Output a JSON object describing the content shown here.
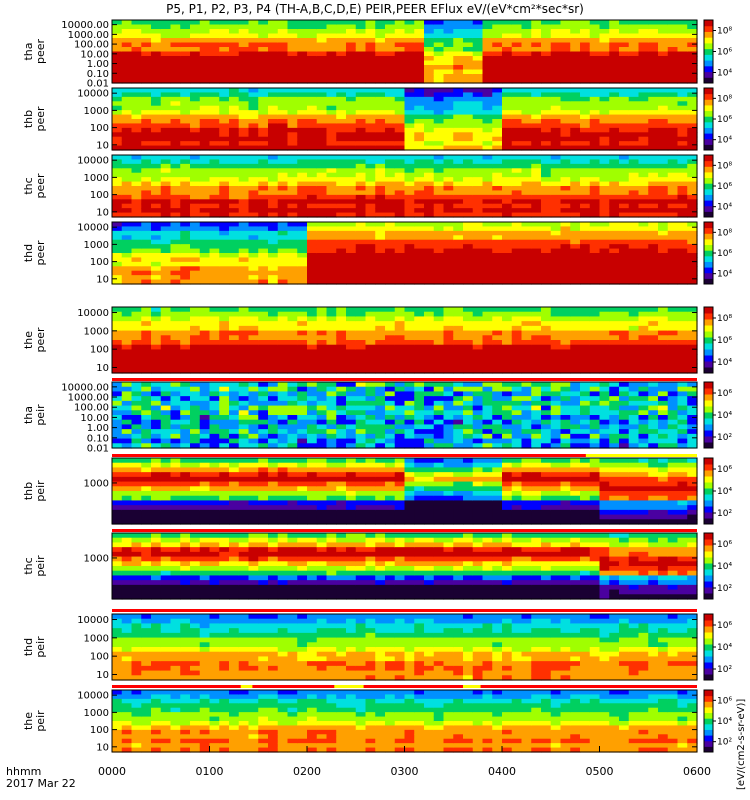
{
  "title": "P5, P1, P2, P3, P4 (TH-A,B,C,D,E) PEIR,PEER EFlux eV/(eV*cm²*sec*sr)",
  "colorbar_units": "[eV/(cm2-s-sr-eV)]",
  "colors": {
    "scale": [
      "#1a0033",
      "#4a00a0",
      "#0000ff",
      "#0090ff",
      "#00e0e0",
      "#00d060",
      "#a0ff00",
      "#ffff00",
      "#ffa000",
      "#ff3000",
      "#c80000"
    ],
    "flag_red": "#ff0000",
    "flag_yellow": "#ffff00",
    "flag_white": "#ffffff"
  },
  "chart_data": {
    "type": "heatmap",
    "x_axis": {
      "label": "hhmm",
      "date_label": "2017 Mar 22",
      "ticks": [
        "0000",
        "0100",
        "0200",
        "0300",
        "0400",
        "0500",
        "0600"
      ],
      "range": [
        0,
        360
      ],
      "unit": "minutes"
    },
    "panels": [
      {
        "id": "tha-peer",
        "label": [
          "tha",
          "peer"
        ],
        "yscale": "log",
        "ylim": [
          0.01,
          30000
        ],
        "ticks": [
          "10000.00",
          "1000.00",
          "100.00",
          "10.00",
          "1.00",
          "0.10",
          "0.01"
        ],
        "tickvals": [
          10000,
          1000,
          100,
          10,
          1,
          0.1,
          0.01
        ],
        "colorbar_ticks": [
          "10⁸",
          "10⁶",
          "10⁴"
        ],
        "colorbar_vals": [
          8,
          6,
          4
        ],
        "cbmin": 3,
        "cbmax": 9,
        "seed": 11,
        "dip": [
          190,
          230
        ],
        "level": 0.72,
        "bottom_band": true
      },
      {
        "id": "thb-peer",
        "label": [
          "thb",
          "peer"
        ],
        "yscale": "log",
        "ylim": [
          5,
          20000
        ],
        "ticks": [
          "10000",
          "1000",
          "100",
          "10"
        ],
        "tickvals": [
          10000,
          1000,
          100,
          10
        ],
        "colorbar_ticks": [
          "10⁸",
          "10⁶",
          "10⁴"
        ],
        "colorbar_vals": [
          8,
          6,
          4
        ],
        "cbmin": 3,
        "cbmax": 9,
        "seed": 22,
        "dip": [
          180,
          240
        ],
        "level": 0.62
      },
      {
        "id": "thc-peer",
        "label": [
          "thc",
          "peer"
        ],
        "yscale": "log",
        "ylim": [
          5,
          20000
        ],
        "ticks": [
          "10000",
          "1000",
          "100",
          "10"
        ],
        "tickvals": [
          10000,
          1000,
          100,
          10
        ],
        "colorbar_ticks": [
          "10⁸",
          "10⁶",
          "10⁴"
        ],
        "colorbar_vals": [
          8,
          6,
          4
        ],
        "cbmin": 3,
        "cbmax": 9,
        "seed": 33,
        "dip": null,
        "level": 0.6
      },
      {
        "id": "thd-peer",
        "label": [
          "thd",
          "peer"
        ],
        "yscale": "log",
        "ylim": [
          5,
          20000
        ],
        "ticks": [
          "10000",
          "1000",
          "100",
          "10"
        ],
        "tickvals": [
          10000,
          1000,
          100,
          10
        ],
        "colorbar_ticks": [
          "10⁸",
          "10⁶",
          "10⁴"
        ],
        "colorbar_vals": [
          8,
          6,
          4
        ],
        "cbmin": 3,
        "cbmax": 9,
        "seed": 44,
        "dip": null,
        "level": 0.7,
        "step": [
          120,
          0.45,
          0.82
        ]
      },
      {
        "id": "the-peer",
        "label": [
          "the",
          "peer"
        ],
        "yscale": "log",
        "ylim": [
          5,
          20000
        ],
        "ticks": [
          "10000",
          "1000",
          "100",
          "10"
        ],
        "tickvals": [
          10000,
          1000,
          100,
          10
        ],
        "colorbar_ticks": [
          "10⁸",
          "10⁶",
          "10⁴"
        ],
        "colorbar_vals": [
          8,
          6,
          4
        ],
        "cbmin": 3,
        "cbmax": 9,
        "seed": 55,
        "dip": null,
        "level": 0.72
      },
      {
        "id": "tha-peir",
        "label": [
          "tha",
          "peir"
        ],
        "yscale": "log",
        "ylim": [
          0.01,
          30000
        ],
        "ticks": [
          "10000.00",
          "1000.00",
          "100.00",
          "10.00",
          "1.00",
          "0.10",
          "0.01"
        ],
        "tickvals": [
          10000,
          1000,
          100,
          10,
          1,
          0.1,
          0.01
        ],
        "colorbar_ticks": [
          "10⁶",
          "10⁴",
          "10²"
        ],
        "colorbar_vals": [
          6,
          4,
          2
        ],
        "cbmin": 1,
        "cbmax": 7,
        "seed": 66,
        "dip": null,
        "level": 0.42,
        "speckle": true
      },
      {
        "id": "thb-peir",
        "label": [
          "thb",
          "peir"
        ],
        "yscale": "log",
        "ylim": [
          5,
          25000
        ],
        "ticks": [
          "1000"
        ],
        "tickvals": [
          1000
        ],
        "colorbar_ticks": [
          "10⁶",
          "10⁴",
          "10²"
        ],
        "colorbar_vals": [
          6,
          4,
          2
        ],
        "cbmin": 1,
        "cbmax": 7,
        "seed": 77,
        "dip": [
          180,
          240
        ],
        "level": 0.66,
        "ion": true,
        "late_drop": 300
      },
      {
        "id": "thc-peir",
        "label": [
          "thc",
          "peir"
        ],
        "yscale": "log",
        "ylim": [
          5,
          25000
        ],
        "ticks": [
          "1000"
        ],
        "tickvals": [
          1000
        ],
        "colorbar_ticks": [
          "10⁶",
          "10⁴",
          "10²"
        ],
        "colorbar_vals": [
          6,
          4,
          2
        ],
        "cbmin": 1,
        "cbmax": 7,
        "seed": 88,
        "dip": null,
        "level": 0.66,
        "ion": true,
        "late_drop": 300
      },
      {
        "id": "thd-peir",
        "label": [
          "thd",
          "peir"
        ],
        "yscale": "log",
        "ylim": [
          5,
          20000
        ],
        "ticks": [
          "10000",
          "1000",
          "100",
          "10"
        ],
        "tickvals": [
          10000,
          1000,
          100,
          10
        ],
        "colorbar_ticks": [
          "10⁶",
          "10⁴",
          "10²"
        ],
        "colorbar_vals": [
          6,
          4,
          2
        ],
        "cbmin": 1,
        "cbmax": 7,
        "seed": 99,
        "dip": null,
        "level": 0.5
      },
      {
        "id": "the-peir",
        "label": [
          "the",
          "peir"
        ],
        "yscale": "log",
        "ylim": [
          5,
          20000
        ],
        "ticks": [
          "10000",
          "1000",
          "100",
          "10"
        ],
        "tickvals": [
          10000,
          1000,
          100,
          10
        ],
        "colorbar_ticks": [
          "10⁶",
          "10⁴",
          "10²"
        ],
        "colorbar_vals": [
          6,
          4,
          2
        ],
        "cbmin": 1,
        "cbmax": 7,
        "seed": 111,
        "dip": null,
        "level": 0.5
      }
    ]
  }
}
